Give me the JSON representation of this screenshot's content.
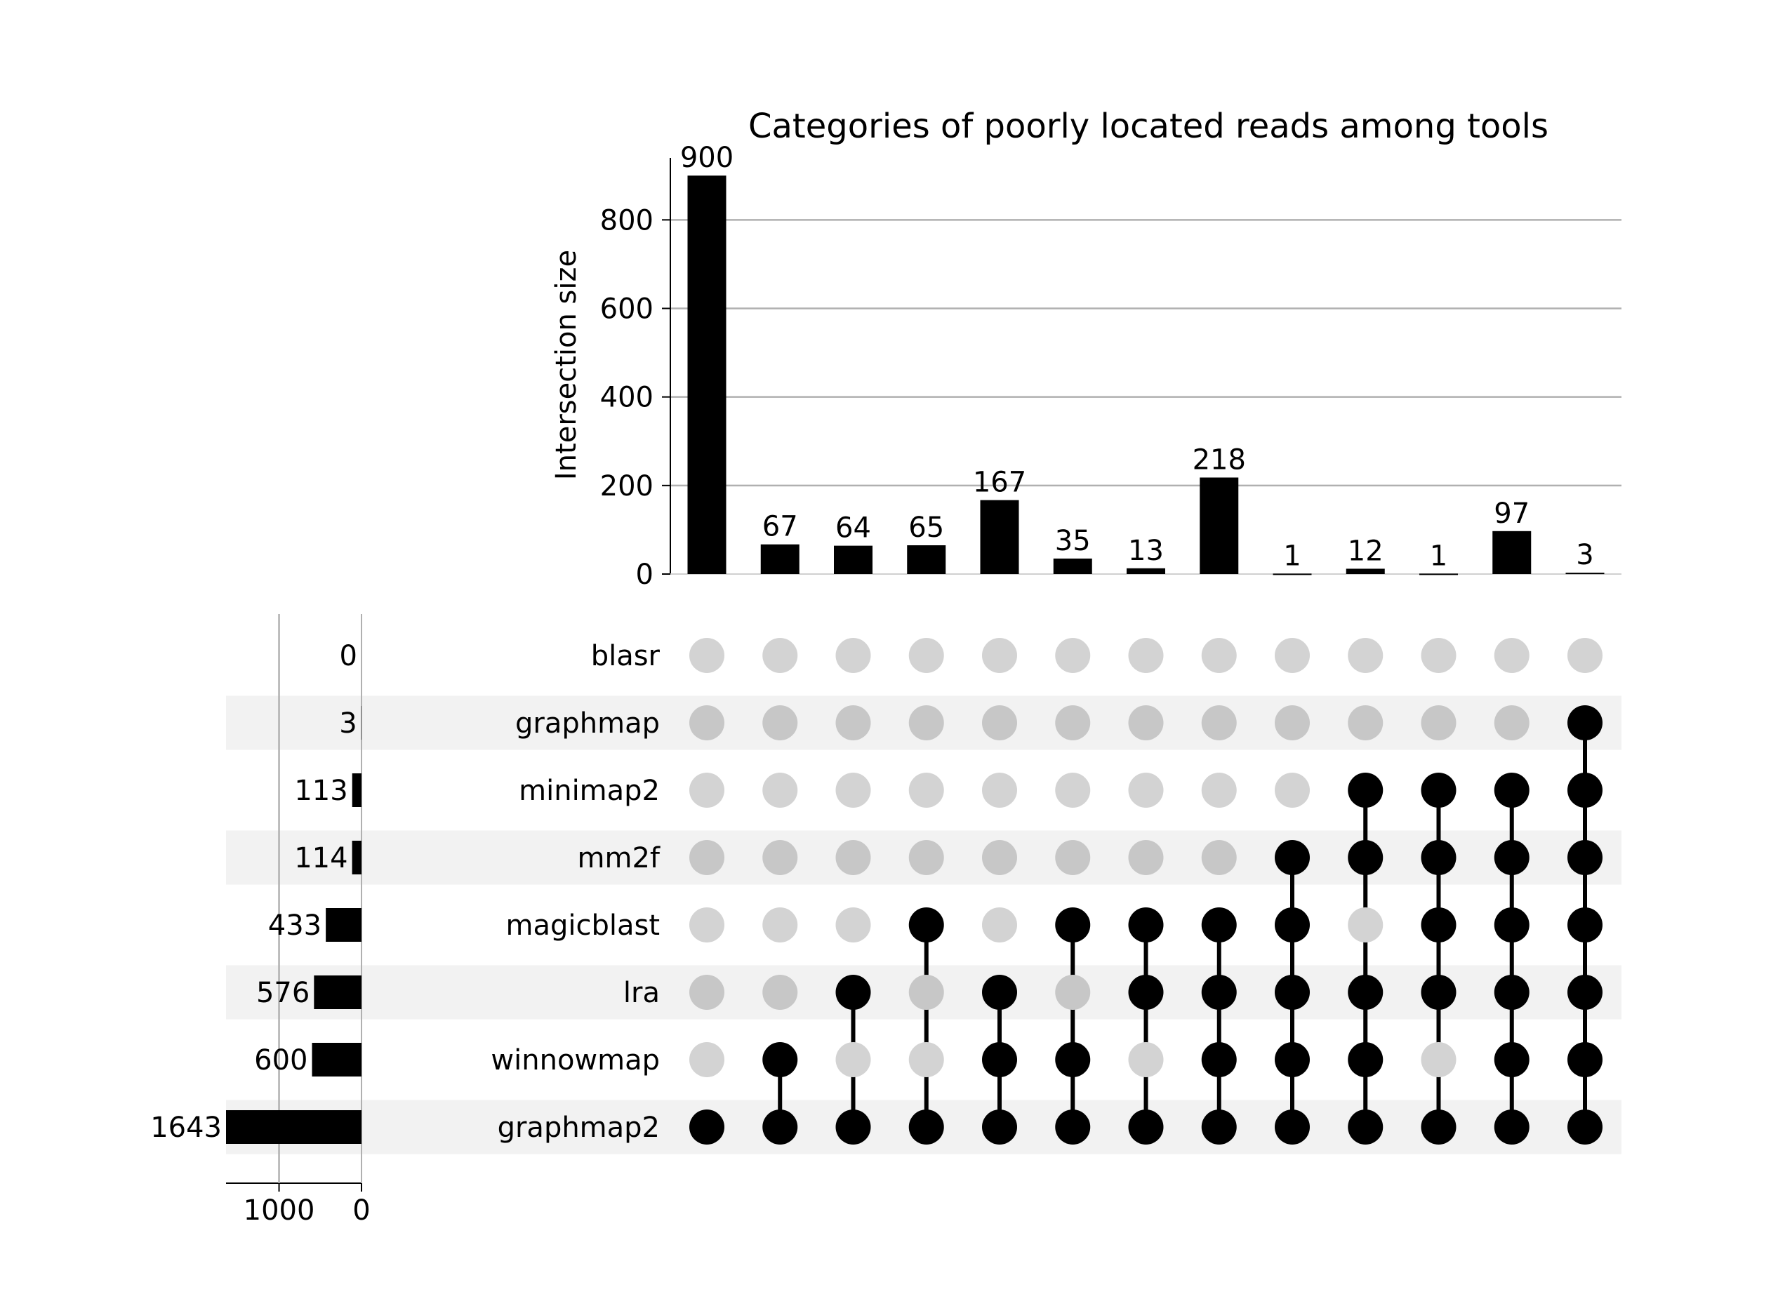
{
  "chart_data": {
    "type": "upset",
    "title": "Categories of poorly located reads among tools",
    "ylabel": "Intersection size",
    "ylim": [
      0,
      940
    ],
    "yticks": [
      0,
      200,
      400,
      600,
      800
    ],
    "yticks_text": [
      "0",
      "200",
      "400",
      "600",
      "800"
    ],
    "grid": true,
    "sets": [
      "blasr",
      "graphmap",
      "minimap2",
      "mm2f",
      "magicblast",
      "lra",
      "winnowmap",
      "graphmap2"
    ],
    "set_sizes": [
      0,
      3,
      113,
      114,
      433,
      576,
      600,
      1643
    ],
    "set_sizes_text": [
      "0",
      "3",
      "113",
      "114",
      "433",
      "576",
      "600",
      "1643"
    ],
    "set_size_ticks": [
      1000,
      0
    ],
    "set_size_ticks_text": [
      "1000",
      "0"
    ],
    "set_size_xlim": [
      0,
      1643
    ],
    "intersections": [
      {
        "value": 900,
        "label": "900",
        "members": [
          "graphmap2"
        ]
      },
      {
        "value": 67,
        "label": "67",
        "members": [
          "winnowmap",
          "graphmap2"
        ]
      },
      {
        "value": 64,
        "label": "64",
        "members": [
          "lra",
          "graphmap2"
        ]
      },
      {
        "value": 65,
        "label": "65",
        "members": [
          "magicblast",
          "graphmap2"
        ]
      },
      {
        "value": 167,
        "label": "167",
        "members": [
          "lra",
          "winnowmap",
          "graphmap2"
        ]
      },
      {
        "value": 35,
        "label": "35",
        "members": [
          "magicblast",
          "winnowmap",
          "graphmap2"
        ]
      },
      {
        "value": 13,
        "label": "13",
        "members": [
          "magicblast",
          "lra",
          "graphmap2"
        ]
      },
      {
        "value": 218,
        "label": "218",
        "members": [
          "magicblast",
          "lra",
          "winnowmap",
          "graphmap2"
        ]
      },
      {
        "value": 1,
        "label": "1",
        "members": [
          "mm2f",
          "magicblast",
          "lra",
          "winnowmap",
          "graphmap2"
        ]
      },
      {
        "value": 12,
        "label": "12",
        "members": [
          "minimap2",
          "mm2f",
          "lra",
          "winnowmap",
          "graphmap2"
        ]
      },
      {
        "value": 1,
        "label": "1",
        "members": [
          "minimap2",
          "mm2f",
          "magicblast",
          "lra",
          "graphmap2"
        ]
      },
      {
        "value": 97,
        "label": "97",
        "members": [
          "minimap2",
          "mm2f",
          "magicblast",
          "lra",
          "winnowmap",
          "graphmap2"
        ]
      },
      {
        "value": 3,
        "label": "3",
        "members": [
          "graphmap",
          "minimap2",
          "mm2f",
          "magicblast",
          "lra",
          "winnowmap",
          "graphmap2"
        ]
      }
    ],
    "colors": {
      "bar": "#000000",
      "dot_active": "#000000",
      "dot_inactive": "#d3d3d3",
      "dot_inactive_shaded": "#c7c7c7",
      "row_shade": "#f2f2f2",
      "grid": "#b0b0b0"
    }
  }
}
